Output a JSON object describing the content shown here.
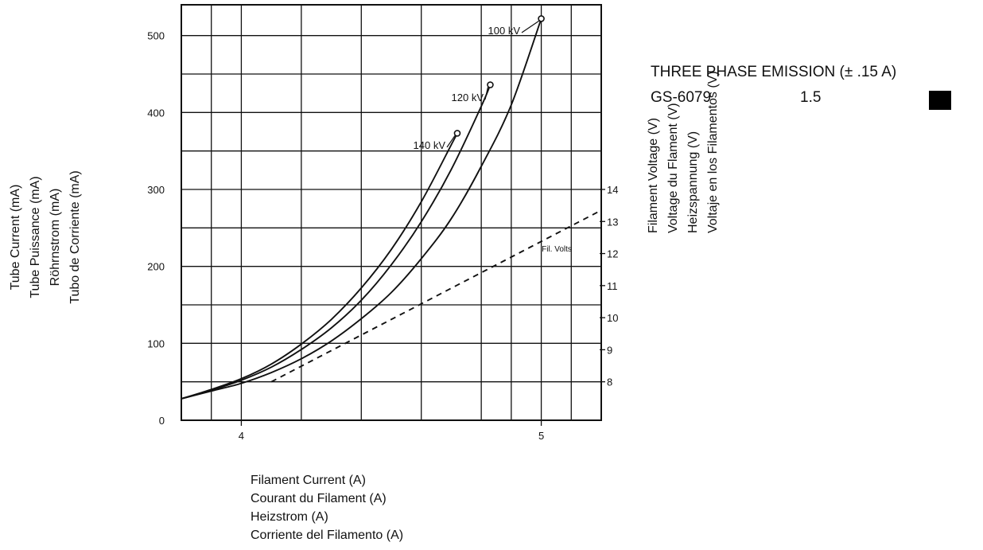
{
  "chart_data": {
    "type": "line",
    "xlabel_lines": [
      "Filament Current (A)",
      "Courant du Filament (A)",
      "Heizstrom (A)",
      "Corriente del Filamento (A)"
    ],
    "ylabel_lines": [
      "Tube Current (mA)",
      "Tube Puissance (mA)",
      "Röhrnstrom (mA)",
      "Tubo de Corriente (mA)"
    ],
    "y2label_lines": [
      "Filament Voltage (V)",
      "Voltage du Flament  (V)",
      "Heizspannung (V)",
      "Voltaje en los Filamentos (V)"
    ],
    "xlim": [
      3.8,
      5.2
    ],
    "ylim": [
      0,
      540
    ],
    "y2lim": [
      8,
      14
    ],
    "xticks": [
      4,
      5
    ],
    "xtick_labels": [
      "4",
      "5"
    ],
    "yticks": [
      0,
      100,
      200,
      300,
      400,
      500
    ],
    "ytick_labels": [
      "0",
      "100",
      "200",
      "300",
      "400",
      "500"
    ],
    "y2ticks": [
      8,
      9,
      10,
      11,
      12,
      13,
      14
    ],
    "y2tick_labels": [
      "8",
      "9",
      "10",
      "11",
      "12",
      "13",
      "14"
    ],
    "grid": true,
    "series": [
      {
        "name": "100 kV",
        "axis": "left",
        "style": "solid",
        "end_marker": true,
        "x": [
          3.8,
          3.9,
          4.0,
          4.1,
          4.2,
          4.3,
          4.4,
          4.5,
          4.6,
          4.7,
          4.8,
          4.9,
          5.0
        ],
        "y": [
          28,
          38,
          48,
          62,
          80,
          103,
          132,
          166,
          210,
          262,
          330,
          410,
          522
        ]
      },
      {
        "name": "120 kV",
        "axis": "left",
        "style": "solid",
        "end_marker": true,
        "x": [
          3.8,
          3.9,
          4.0,
          4.1,
          4.2,
          4.3,
          4.4,
          4.5,
          4.6,
          4.7,
          4.8,
          4.83
        ],
        "y": [
          28,
          39,
          52,
          69,
          92,
          120,
          156,
          202,
          258,
          326,
          408,
          436
        ]
      },
      {
        "name": "140 kV",
        "axis": "left",
        "style": "solid",
        "end_marker": true,
        "x": [
          3.8,
          3.9,
          4.0,
          4.1,
          4.2,
          4.3,
          4.4,
          4.5,
          4.6,
          4.7,
          4.72
        ],
        "y": [
          28,
          40,
          54,
          73,
          99,
          131,
          172,
          222,
          284,
          358,
          373
        ]
      },
      {
        "name": "Fil. Volts",
        "axis": "right",
        "style": "dashed",
        "end_marker": false,
        "x": [
          4.1,
          5.2
        ],
        "y": [
          8.0,
          13.35
        ]
      }
    ]
  },
  "emission_panel": {
    "title": "THREE PHASE EMISSION (± .15 A)",
    "model": "GS-6079",
    "value": "1.5",
    "swatch_color": "#000000"
  }
}
